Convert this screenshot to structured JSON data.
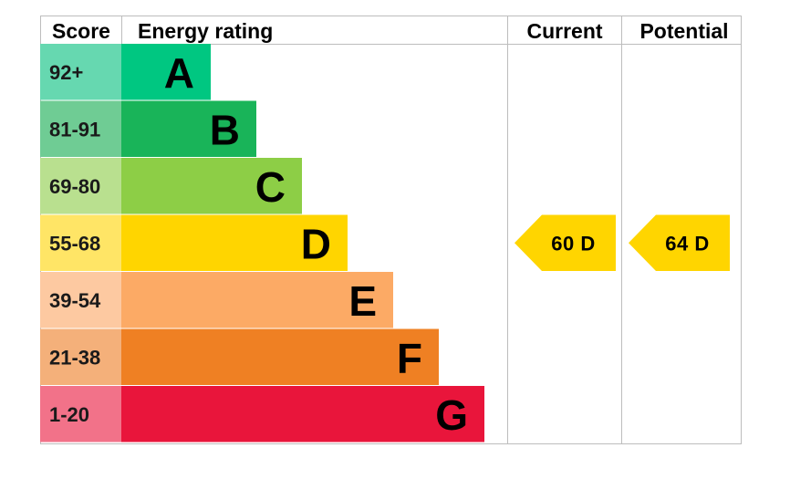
{
  "headers": {
    "score": "Score",
    "rating": "Energy rating",
    "current": "Current",
    "potential": "Potential"
  },
  "chart_data": {
    "type": "bar",
    "categories": [
      "A",
      "B",
      "C",
      "D",
      "E",
      "F",
      "G"
    ],
    "score_ranges": [
      "92+",
      "81-91",
      "69-80",
      "55-68",
      "39-54",
      "21-38",
      "1-20"
    ],
    "band_colors": [
      "#00c781",
      "#19b459",
      "#8dce46",
      "#ffd500",
      "#fcaa65",
      "#ef8023",
      "#e9153b"
    ],
    "score_colors": [
      "#66d8b0",
      "#6fcc94",
      "#b9e08f",
      "#ffe566",
      "#fdc9a1",
      "#f4b07a",
      "#f27289"
    ],
    "current": {
      "value": 60,
      "band": "D",
      "label": "60 D",
      "color": "#ffd500"
    },
    "potential": {
      "value": 64,
      "band": "D",
      "label": "64 D",
      "color": "#ffd500"
    }
  }
}
